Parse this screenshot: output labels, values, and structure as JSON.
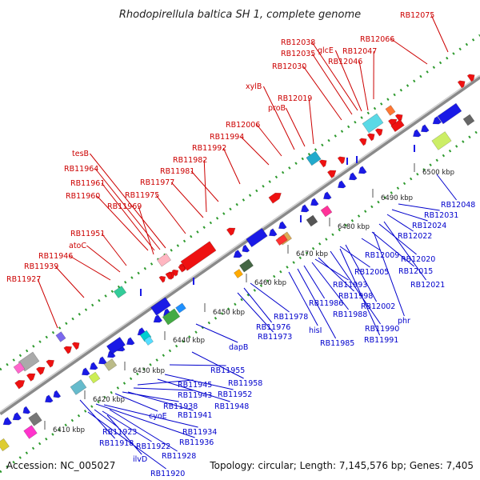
{
  "title": "Rhodopirellula baltica SH 1, complete genome",
  "footer": {
    "accession": "Accession: NC_005027",
    "summary": "Topology: circular; Length: 7,145,576 bp; Genes: 7,405"
  },
  "colors": {
    "top_label": "#cc0000",
    "bottom_label": "#0000cc",
    "forward_gene": "#ee1111",
    "reverse_gene": "#1a1ae6",
    "backbone": "#8a8a8a",
    "track_dots": "#2e9a2e"
  },
  "position_unit": "kbp",
  "positions": [
    "6410 kbp",
    "6420 kbp",
    "6430 kbp",
    "6440 kbp",
    "6450 kbp",
    "6460 kbp",
    "6470 kbp",
    "6480 kbp",
    "6490 kbp",
    "6500 kbp"
  ],
  "top_genes": [
    "RB11927",
    "RB11939",
    "RB11946",
    "atoC",
    "RB11951",
    "RB11960",
    "RB11961",
    "RB11964",
    "tesB",
    "RB11969",
    "RB11975",
    "RB11977",
    "RB11981",
    "RB11982",
    "RB11992",
    "RB11994",
    "RB12006",
    "proB",
    "RB12019",
    "xylB",
    "RB12030",
    "RB12035",
    "RB12038",
    "glcE",
    "RB12046",
    "RB12047",
    "RB12066",
    "RB12075"
  ],
  "bottom_genes": [
    "RB11918",
    "ilvD",
    "RB11920",
    "RB11922",
    "RB11923",
    "RB11928",
    "RB11934",
    "RB11936",
    "cyoE",
    "RB11938",
    "RB11941",
    "RB11943",
    "RB11945",
    "RB11948",
    "RB11952",
    "RB11955",
    "RB11958",
    "dapB",
    "RB11973",
    "RB11976",
    "RB11978",
    "hisI",
    "RB11985",
    "RB11986",
    "RB11988",
    "RB11990",
    "RB11991",
    "RB11993",
    "RB11998",
    "RB12002",
    "phr",
    "RB12005",
    "RB12009",
    "RB12015",
    "RB12020",
    "RB12021",
    "RB12022",
    "RB12024",
    "RB12031",
    "RB12048"
  ]
}
